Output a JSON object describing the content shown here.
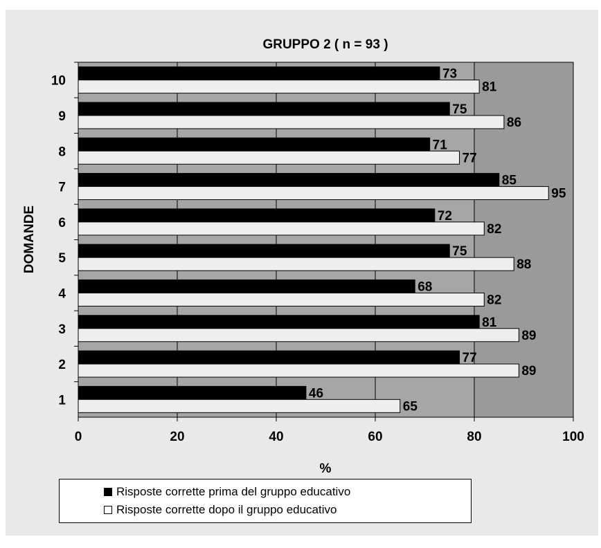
{
  "chart_data": {
    "type": "bar",
    "orientation": "horizontal",
    "title": "GRUPPO 2 ( n = 93 )",
    "xlabel": "%",
    "ylabel": "DOMANDE",
    "categories": [
      "1",
      "2",
      "3",
      "4",
      "5",
      "6",
      "7",
      "8",
      "9",
      "10"
    ],
    "xlim": [
      0,
      100
    ],
    "xticks": [
      "0",
      "20",
      "40",
      "60",
      "80",
      "100"
    ],
    "grid": "vertical",
    "shaded_region": [
      80,
      100
    ],
    "series": [
      {
        "name": "Risposte corrette prima del gruppo educativo",
        "color": "#000000",
        "values": [
          46,
          77,
          81,
          68,
          75,
          72,
          85,
          71,
          75,
          73
        ]
      },
      {
        "name": "Risposte corrette dopo il gruppo educativo",
        "color": "#eeeeee",
        "values": [
          65,
          89,
          89,
          82,
          88,
          82,
          95,
          77,
          86,
          81
        ]
      }
    ],
    "legend_position": "bottom",
    "plot_background": "#a6a6a6"
  }
}
